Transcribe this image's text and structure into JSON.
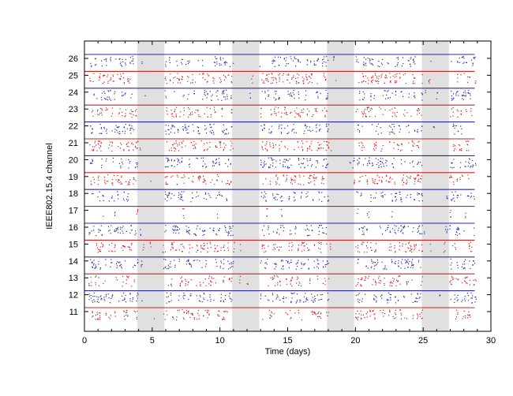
{
  "chart_data": {
    "type": "scatter",
    "xlabel": "Time (days)",
    "ylabel": "IEEE802.15.4 channel",
    "xlim": [
      0,
      30
    ],
    "xticks": [
      "0",
      "5",
      "10",
      "15",
      "20",
      "25",
      "30"
    ],
    "channels": [
      "26",
      "25",
      "24",
      "23",
      "22",
      "21",
      "20",
      "19",
      "18",
      "17",
      "16",
      "15",
      "14",
      "13",
      "12",
      "11"
    ],
    "data_extent_days": [
      0,
      28.8
    ],
    "weekend_shading_days": [
      [
        3.9,
        5.9
      ],
      [
        10.9,
        12.9
      ],
      [
        17.9,
        19.9
      ],
      [
        24.9,
        26.9
      ]
    ],
    "colors": {
      "odd_channel": "#cc2222",
      "even_channel": "#2a2aa8",
      "shade": "#e0e0e0"
    },
    "series": [
      {
        "channel": 26,
        "color": "blue"
      },
      {
        "channel": 25,
        "color": "red"
      },
      {
        "channel": 24,
        "color": "blue"
      },
      {
        "channel": 23,
        "color": "red"
      },
      {
        "channel": 22,
        "color": "blue"
      },
      {
        "channel": 21,
        "color": "red"
      },
      {
        "channel": 20,
        "color": "blue"
      },
      {
        "channel": 19,
        "color": "red"
      },
      {
        "channel": 18,
        "color": "blue"
      },
      {
        "channel": 17,
        "color": "red"
      },
      {
        "channel": 16,
        "color": "blue"
      },
      {
        "channel": 15,
        "color": "red"
      },
      {
        "channel": 14,
        "color": "blue"
      },
      {
        "channel": 13,
        "color": "red"
      },
      {
        "channel": 12,
        "color": "blue"
      },
      {
        "channel": 11,
        "color": "red"
      }
    ],
    "grid": false,
    "legend": "none"
  }
}
